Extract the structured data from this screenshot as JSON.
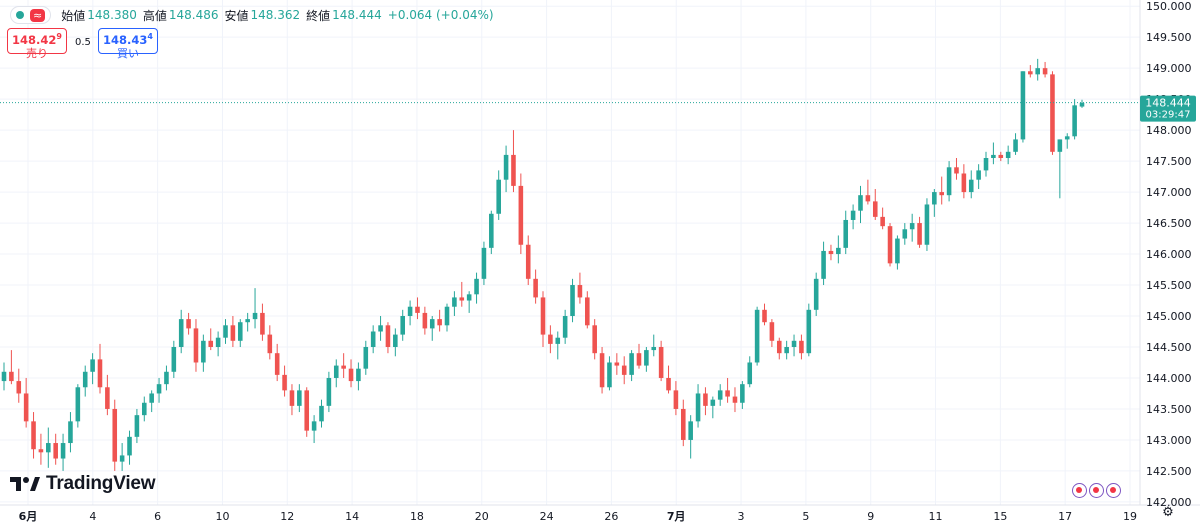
{
  "header": {
    "symbol_badge": "≈",
    "open_label": "始値",
    "open": "148.380",
    "high_label": "高値",
    "high": "148.486",
    "low_label": "安値",
    "low": "148.362",
    "close_label": "終値",
    "close": "148.444",
    "change": "+0.064 (+0.04%)"
  },
  "trade": {
    "sell_price": "148.42",
    "sell_sup": "9",
    "sell_label": "売り",
    "spread": "0.5",
    "buy_price": "148.43",
    "buy_sup": "4",
    "buy_label": "買い"
  },
  "price_tag": {
    "value": "148.444",
    "countdown": "03:29:47"
  },
  "brand": "TradingView",
  "colors": {
    "up": "#26a69a",
    "down": "#ef5350",
    "grid": "#f0f3fa",
    "sell": "#f23645",
    "buy": "#2962ff"
  },
  "chart_data": {
    "type": "candlestick",
    "y_ticks": [
      "142.000",
      "142.500",
      "143.000",
      "143.500",
      "144.000",
      "144.500",
      "145.000",
      "145.500",
      "146.000",
      "146.500",
      "147.000",
      "147.500",
      "148.000",
      "148.500",
      "149.000",
      "149.500",
      "150.000"
    ],
    "ylim": [
      141.95,
      150.1
    ],
    "x_ticks": [
      "6月",
      "4",
      "6",
      "10",
      "12",
      "14",
      "18",
      "20",
      "24",
      "26",
      "7月",
      "3",
      "5",
      "9",
      "11",
      "15",
      "17",
      "19"
    ],
    "last_price": 148.444,
    "candles_note": "4-hour OHLC, approximate values read from the chart",
    "ohlc": [
      [
        143.95,
        144.25,
        143.8,
        144.1
      ],
      [
        144.1,
        144.45,
        143.9,
        143.95
      ],
      [
        143.95,
        144.15,
        143.6,
        143.75
      ],
      [
        143.75,
        144.0,
        143.2,
        143.3
      ],
      [
        143.3,
        143.45,
        142.7,
        142.85
      ],
      [
        142.85,
        143.1,
        142.6,
        142.8
      ],
      [
        142.8,
        143.2,
        142.55,
        142.95
      ],
      [
        142.95,
        143.1,
        142.6,
        142.7
      ],
      [
        142.7,
        143.1,
        142.5,
        142.95
      ],
      [
        142.95,
        143.45,
        142.8,
        143.3
      ],
      [
        143.3,
        143.9,
        143.2,
        143.85
      ],
      [
        143.85,
        144.2,
        143.7,
        144.1
      ],
      [
        144.1,
        144.4,
        143.9,
        144.3
      ],
      [
        144.3,
        144.55,
        143.75,
        143.85
      ],
      [
        143.85,
        144.05,
        143.4,
        143.5
      ],
      [
        143.5,
        143.65,
        142.5,
        142.65
      ],
      [
        142.65,
        142.95,
        142.5,
        142.75
      ],
      [
        142.75,
        143.15,
        142.6,
        143.05
      ],
      [
        143.05,
        143.5,
        142.95,
        143.4
      ],
      [
        143.4,
        143.7,
        143.3,
        143.6
      ],
      [
        143.6,
        143.8,
        143.45,
        143.75
      ],
      [
        143.75,
        144.0,
        143.6,
        143.9
      ],
      [
        143.9,
        144.2,
        143.8,
        144.1
      ],
      [
        144.1,
        144.6,
        144.0,
        144.5
      ],
      [
        144.5,
        145.1,
        144.4,
        144.95
      ],
      [
        144.95,
        145.05,
        144.7,
        144.8
      ],
      [
        144.8,
        144.95,
        144.1,
        144.25
      ],
      [
        144.25,
        144.7,
        144.1,
        144.6
      ],
      [
        144.6,
        144.8,
        144.45,
        144.5
      ],
      [
        144.5,
        144.75,
        144.35,
        144.65
      ],
      [
        144.65,
        144.95,
        144.55,
        144.85
      ],
      [
        144.85,
        145.0,
        144.5,
        144.6
      ],
      [
        144.6,
        144.95,
        144.5,
        144.9
      ],
      [
        144.9,
        145.05,
        144.75,
        144.95
      ],
      [
        144.95,
        145.45,
        144.8,
        145.05
      ],
      [
        145.05,
        145.2,
        144.6,
        144.7
      ],
      [
        144.7,
        144.85,
        144.3,
        144.4
      ],
      [
        144.4,
        144.55,
        143.95,
        144.05
      ],
      [
        144.05,
        144.2,
        143.7,
        143.8
      ],
      [
        143.8,
        143.9,
        143.4,
        143.55
      ],
      [
        143.55,
        143.9,
        143.45,
        143.8
      ],
      [
        143.8,
        143.85,
        143.05,
        143.15
      ],
      [
        143.15,
        143.4,
        142.95,
        143.3
      ],
      [
        143.3,
        143.65,
        143.2,
        143.55
      ],
      [
        143.55,
        144.1,
        143.45,
        144.0
      ],
      [
        144.0,
        144.3,
        143.85,
        144.2
      ],
      [
        144.2,
        144.4,
        144.0,
        144.15
      ],
      [
        144.15,
        144.3,
        143.85,
        143.95
      ],
      [
        143.95,
        144.25,
        143.8,
        144.15
      ],
      [
        144.15,
        144.6,
        144.05,
        144.5
      ],
      [
        144.5,
        144.85,
        144.4,
        144.75
      ],
      [
        144.75,
        145.0,
        144.6,
        144.85
      ],
      [
        144.85,
        144.9,
        144.4,
        144.5
      ],
      [
        144.5,
        144.8,
        144.35,
        144.7
      ],
      [
        144.7,
        145.1,
        144.6,
        145.0
      ],
      [
        145.0,
        145.25,
        144.85,
        145.15
      ],
      [
        145.15,
        145.3,
        144.95,
        145.05
      ],
      [
        145.05,
        145.15,
        144.7,
        144.8
      ],
      [
        144.8,
        145.0,
        144.6,
        144.95
      ],
      [
        144.95,
        145.1,
        144.75,
        144.85
      ],
      [
        144.85,
        145.2,
        144.75,
        145.15
      ],
      [
        145.15,
        145.4,
        145.0,
        145.3
      ],
      [
        145.3,
        145.55,
        145.15,
        145.25
      ],
      [
        145.25,
        145.4,
        145.05,
        145.35
      ],
      [
        145.35,
        145.7,
        145.2,
        145.6
      ],
      [
        145.6,
        146.2,
        145.5,
        146.1
      ],
      [
        146.1,
        146.7,
        146.0,
        146.65
      ],
      [
        146.65,
        147.35,
        146.55,
        147.2
      ],
      [
        147.2,
        147.75,
        147.0,
        147.6
      ],
      [
        147.6,
        148.0,
        147.0,
        147.1
      ],
      [
        147.1,
        147.3,
        146.0,
        146.15
      ],
      [
        146.15,
        146.3,
        145.5,
        145.6
      ],
      [
        145.6,
        145.75,
        145.2,
        145.3
      ],
      [
        145.3,
        145.4,
        144.5,
        144.7
      ],
      [
        144.7,
        144.85,
        144.4,
        144.55
      ],
      [
        144.55,
        144.75,
        144.3,
        144.65
      ],
      [
        144.65,
        145.1,
        144.55,
        145.0
      ],
      [
        145.0,
        145.6,
        144.9,
        145.5
      ],
      [
        145.5,
        145.7,
        145.2,
        145.3
      ],
      [
        145.3,
        145.4,
        144.8,
        144.85
      ],
      [
        144.85,
        144.95,
        144.3,
        144.4
      ],
      [
        144.4,
        144.5,
        143.75,
        143.85
      ],
      [
        143.85,
        144.35,
        143.8,
        144.25
      ],
      [
        144.25,
        144.4,
        144.05,
        144.2
      ],
      [
        144.2,
        144.35,
        143.9,
        144.05
      ],
      [
        144.05,
        144.45,
        143.95,
        144.4
      ],
      [
        144.4,
        144.55,
        144.15,
        144.2
      ],
      [
        144.2,
        144.5,
        144.1,
        144.45
      ],
      [
        144.45,
        144.7,
        144.35,
        144.5
      ],
      [
        144.5,
        144.6,
        143.95,
        144.0
      ],
      [
        144.0,
        144.2,
        143.75,
        143.8
      ],
      [
        143.8,
        143.95,
        143.4,
        143.5
      ],
      [
        143.5,
        143.65,
        142.9,
        143.0
      ],
      [
        143.0,
        143.4,
        142.7,
        143.3
      ],
      [
        143.3,
        143.9,
        143.2,
        143.75
      ],
      [
        143.75,
        143.85,
        143.4,
        143.55
      ],
      [
        143.55,
        143.7,
        143.35,
        143.65
      ],
      [
        143.65,
        143.9,
        143.55,
        143.8
      ],
      [
        143.8,
        144.0,
        143.6,
        143.7
      ],
      [
        143.7,
        143.85,
        143.45,
        143.6
      ],
      [
        143.6,
        143.95,
        143.5,
        143.9
      ],
      [
        143.9,
        144.35,
        143.85,
        144.25
      ],
      [
        144.25,
        145.15,
        144.2,
        145.1
      ],
      [
        145.1,
        145.2,
        144.85,
        144.9
      ],
      [
        144.9,
        144.95,
        144.5,
        144.6
      ],
      [
        144.6,
        144.65,
        144.3,
        144.4
      ],
      [
        144.4,
        144.6,
        144.3,
        144.5
      ],
      [
        144.5,
        144.7,
        144.35,
        144.6
      ],
      [
        144.6,
        144.7,
        144.3,
        144.4
      ],
      [
        144.4,
        145.2,
        144.35,
        145.1
      ],
      [
        145.1,
        145.7,
        145.0,
        145.6
      ],
      [
        145.6,
        146.2,
        145.5,
        146.05
      ],
      [
        146.05,
        146.15,
        145.9,
        146.0
      ],
      [
        146.0,
        146.3,
        145.85,
        146.1
      ],
      [
        146.1,
        146.7,
        146.0,
        146.55
      ],
      [
        146.55,
        146.8,
        146.4,
        146.7
      ],
      [
        146.7,
        147.1,
        146.5,
        146.95
      ],
      [
        146.95,
        147.2,
        146.8,
        146.85
      ],
      [
        146.85,
        147.05,
        146.55,
        146.6
      ],
      [
        146.6,
        146.75,
        146.4,
        146.45
      ],
      [
        146.45,
        146.5,
        145.8,
        145.85
      ],
      [
        145.85,
        146.3,
        145.75,
        146.25
      ],
      [
        146.25,
        146.5,
        146.15,
        146.4
      ],
      [
        146.4,
        146.65,
        146.2,
        146.5
      ],
      [
        146.5,
        146.6,
        146.1,
        146.15
      ],
      [
        146.15,
        146.9,
        146.05,
        146.8
      ],
      [
        146.8,
        147.05,
        146.6,
        147.0
      ],
      [
        147.0,
        147.25,
        146.8,
        146.95
      ],
      [
        146.95,
        147.5,
        146.85,
        147.4
      ],
      [
        147.4,
        147.55,
        147.2,
        147.3
      ],
      [
        147.3,
        147.45,
        146.9,
        147.0
      ],
      [
        147.0,
        147.35,
        146.9,
        147.2
      ],
      [
        147.2,
        147.45,
        147.05,
        147.35
      ],
      [
        147.35,
        147.65,
        147.25,
        147.55
      ],
      [
        147.55,
        147.8,
        147.45,
        147.6
      ],
      [
        147.6,
        147.65,
        147.5,
        147.55
      ],
      [
        147.55,
        147.75,
        147.45,
        147.65
      ],
      [
        147.65,
        147.95,
        147.6,
        147.85
      ],
      [
        147.85,
        148.95,
        147.8,
        148.95
      ],
      [
        148.95,
        149.05,
        148.85,
        148.9
      ],
      [
        148.9,
        149.15,
        148.8,
        149.0
      ],
      [
        149.0,
        149.1,
        148.85,
        148.9
      ],
      [
        148.9,
        148.95,
        147.6,
        147.65
      ],
      [
        147.65,
        147.85,
        146.9,
        147.85
      ],
      [
        147.85,
        147.95,
        147.7,
        147.9
      ],
      [
        147.9,
        148.5,
        147.85,
        148.4
      ],
      [
        148.38,
        148.49,
        148.36,
        148.44
      ]
    ]
  }
}
